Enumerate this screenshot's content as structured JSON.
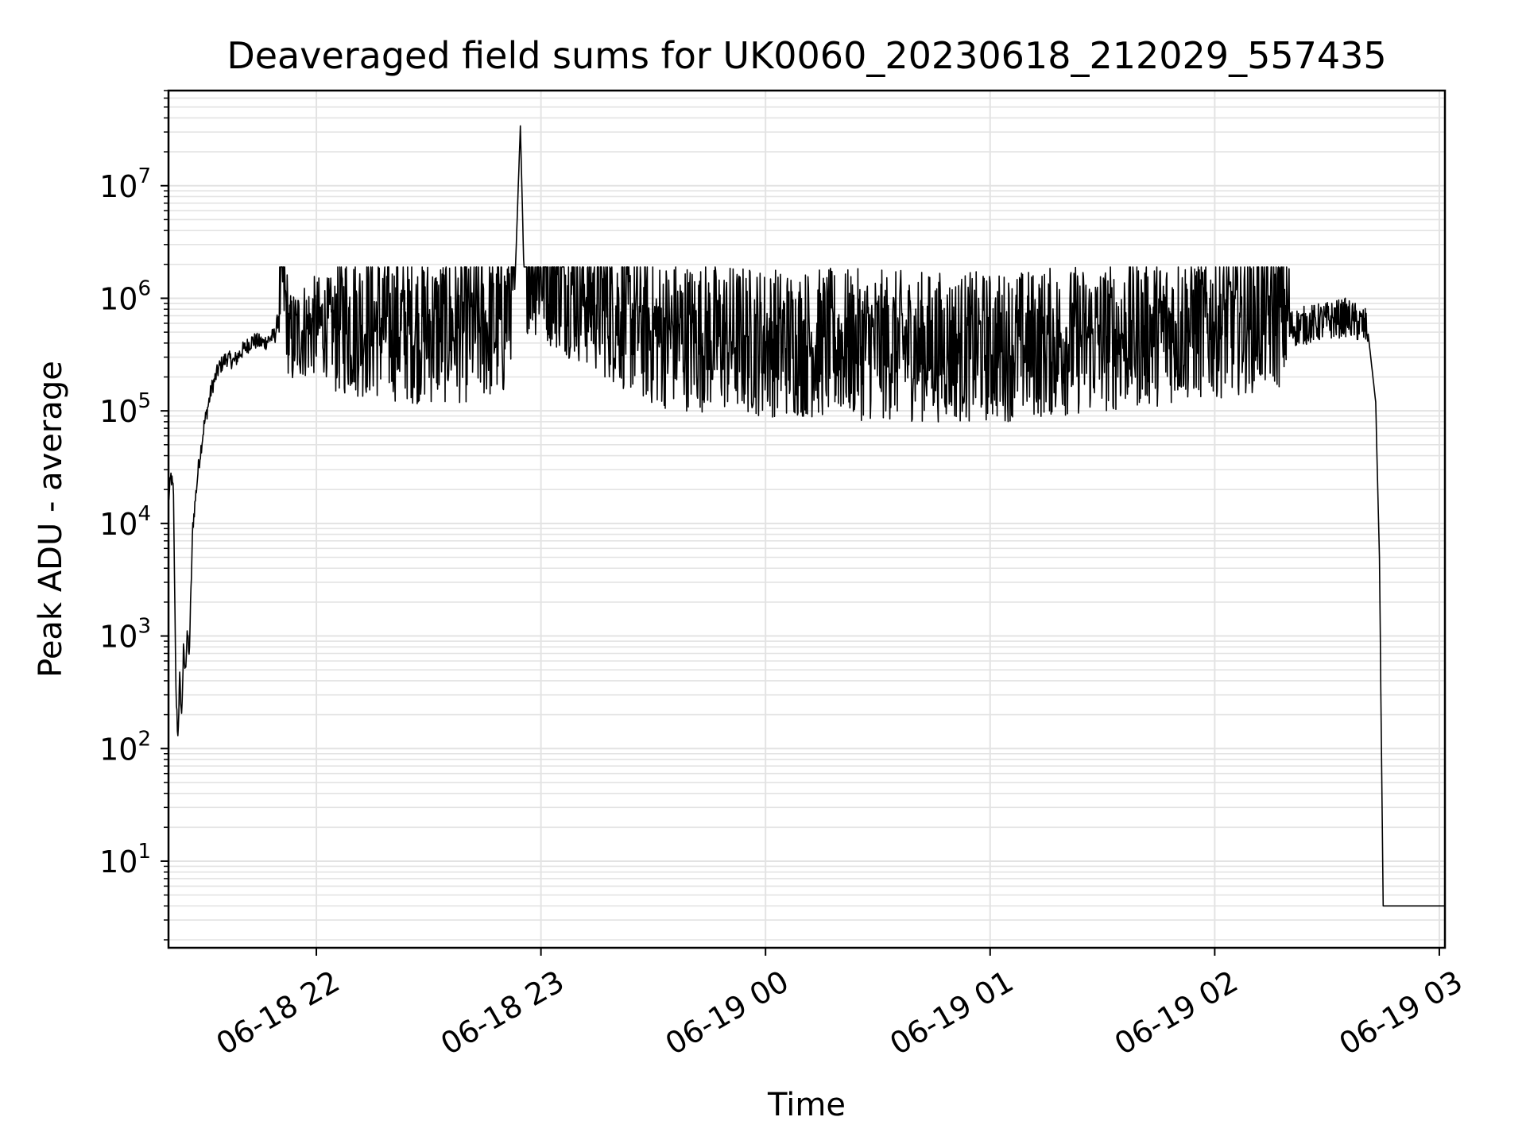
{
  "chart_data": {
    "type": "line",
    "title": "Deaveraged field sums for UK0060_20230618_212029_557435",
    "xlabel": "Time",
    "ylabel": "Peak ADU - average",
    "yscale": "log",
    "ylim": [
      1.7,
      70000000
    ],
    "xlim": [
      "06-18 21:20:30",
      "06-19 03:01:30"
    ],
    "x_ticks": [
      "06-18 22",
      "06-18 23",
      "06-19 00",
      "06-19 01",
      "06-19 02",
      "06-19 03"
    ],
    "y_ticks": [
      {
        "base": "10",
        "exp": "1"
      },
      {
        "base": "10",
        "exp": "2"
      },
      {
        "base": "10",
        "exp": "3"
      },
      {
        "base": "10",
        "exp": "4"
      },
      {
        "base": "10",
        "exp": "5"
      },
      {
        "base": "10",
        "exp": "6"
      },
      {
        "base": "10",
        "exp": "7"
      }
    ],
    "grid": true,
    "line_color": "#000000",
    "grid_color": "#e3e3e3",
    "series": [
      {
        "points": [
          [
            "06-18 21:20:30",
            15000
          ],
          [
            "06-18 21:21:10",
            25000
          ],
          [
            "06-18 21:21:50",
            18000
          ],
          [
            "06-18 21:22:30",
            300
          ],
          [
            "06-18 21:23:00",
            120
          ],
          [
            "06-18 21:23:30",
            400
          ],
          [
            "06-18 21:24:00",
            180
          ],
          [
            "06-18 21:24:30",
            700
          ],
          [
            "06-18 21:25:00",
            450
          ],
          [
            "06-18 21:25:30",
            1100
          ],
          [
            "06-18 21:26:00",
            600
          ],
          [
            "06-18 21:27:00",
            9000
          ],
          [
            "06-18 21:28:30",
            30000
          ],
          [
            "06-18 21:30:00",
            70000
          ],
          [
            "06-18 21:32:00",
            150000
          ],
          [
            "06-18 21:34:00",
            230000
          ],
          [
            "06-18 21:36:00",
            280000
          ],
          [
            "06-18 21:38:00",
            260000
          ],
          [
            "06-18 21:40:00",
            320000
          ],
          [
            "06-18 21:43:00",
            400000
          ],
          [
            "06-18 21:46:00",
            380000
          ],
          [
            "06-18 21:49:00",
            450000
          ],
          [
            "06-18 21:51:00",
            1100000
          ],
          [
            "06-18 21:53:00",
            300000
          ],
          [
            "06-18 21:56:00",
            380000
          ],
          [
            "06-18 22:00:00",
            420000
          ],
          [
            "06-18 22:30:00",
            330000
          ],
          [
            "06-18 22:50:00",
            360000
          ],
          [
            "06-18 22:53:00",
            1200000
          ],
          [
            "06-18 22:54:30",
            34000000
          ],
          [
            "06-18 22:55:30",
            1500000
          ],
          [
            "06-18 23:30:00",
            310000
          ],
          [
            "06-19 00:00:00",
            260000
          ],
          [
            "06-19 00:30:00",
            240000
          ],
          [
            "06-19 01:00:00",
            230000
          ],
          [
            "06-19 01:30:00",
            280000
          ],
          [
            "06-19 02:00:00",
            380000
          ],
          [
            "06-19 02:20:00",
            480000
          ],
          [
            "06-19 02:35:00",
            600000
          ],
          [
            "06-19 02:41:00",
            480000
          ],
          [
            "06-19 02:43:00",
            120000
          ],
          [
            "06-19 02:44:00",
            5000
          ],
          [
            "06-19 02:45:00",
            4
          ],
          [
            "06-19 03:01:30",
            4
          ]
        ]
      }
    ]
  }
}
